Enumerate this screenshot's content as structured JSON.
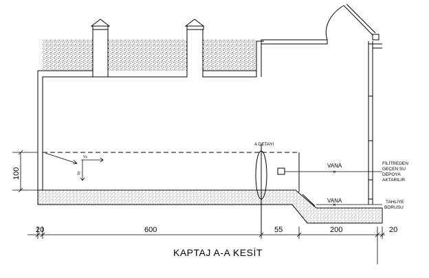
{
  "title": "KAPTAJ A-A KESİT",
  "dimensions": {
    "left_wall": "20",
    "main_span": "600",
    "step": "55",
    "pit": "200",
    "right_wall": "20",
    "height": "100"
  },
  "labels": {
    "detail": "A DETAYI",
    "valve_upper": "VANA",
    "valve_lower": "VANA",
    "filter_line": [
      "FİLİTREDEN",
      "GEÇEN SU",
      "DEPOYA",
      "AKTARILIR"
    ],
    "drain_line": [
      "TAHLİYE",
      "BORUSU"
    ],
    "velocity": "Vs",
    "velocity_vertical": "Vy"
  }
}
